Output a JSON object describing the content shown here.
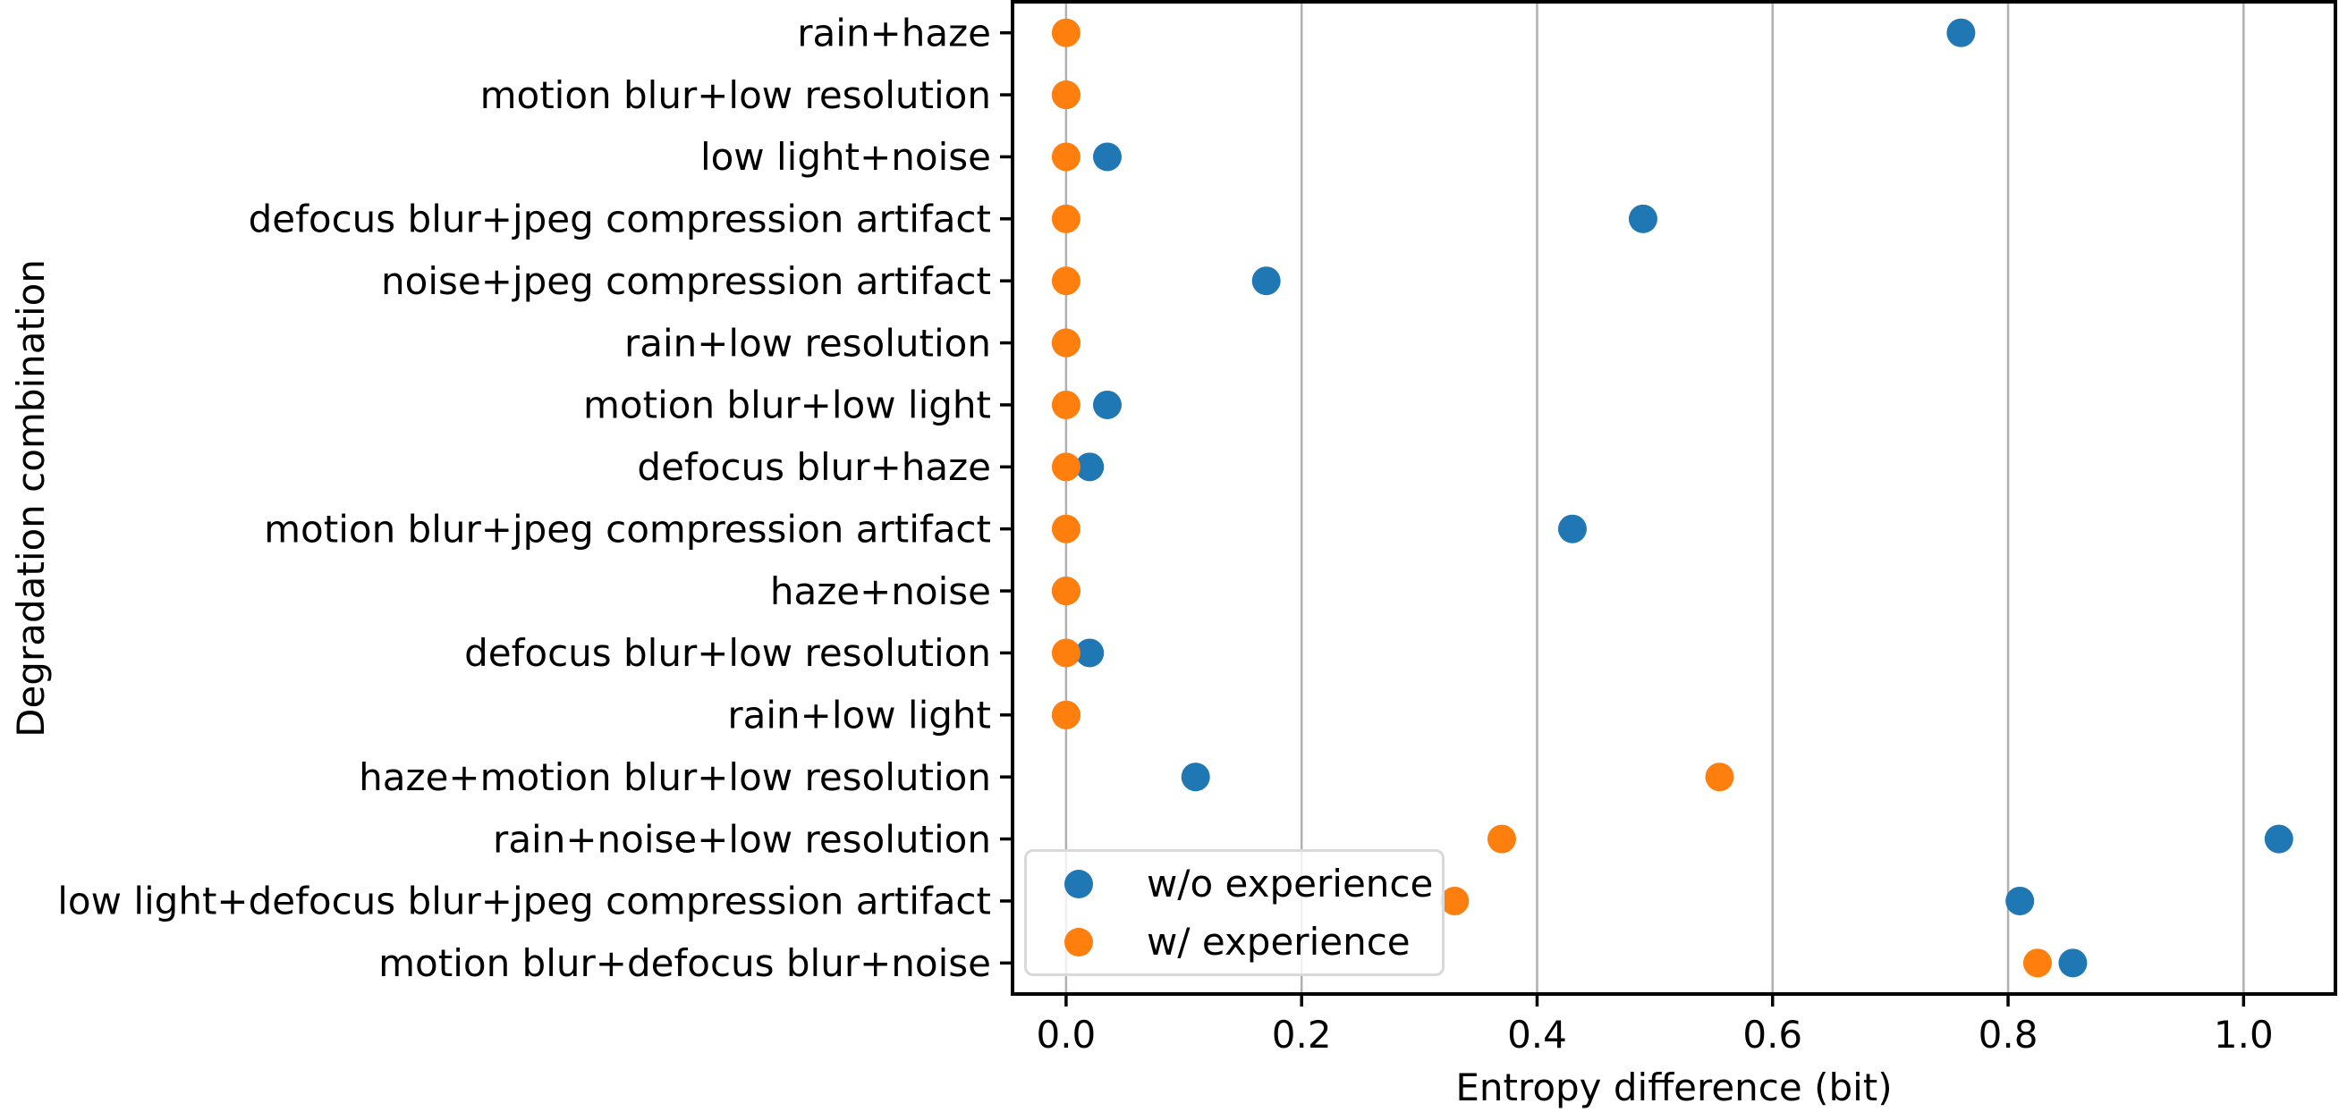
{
  "chart_data": {
    "type": "scatter",
    "orientation": "horizontal-categorical",
    "xlabel": "Entropy difference (bit)",
    "ylabel": "Degradation combination",
    "categories": [
      "rain+haze",
      "motion blur+low resolution",
      "low light+noise",
      "defocus blur+jpeg compression artifact",
      "noise+jpeg compression artifact",
      "rain+low resolution",
      "motion blur+low light",
      "defocus blur+haze",
      "motion blur+jpeg compression artifact",
      "haze+noise",
      "defocus blur+low resolution",
      "rain+low light",
      "haze+motion blur+low resolution",
      "rain+noise+low resolution",
      "low light+defocus blur+jpeg compression artifact",
      "motion blur+defocus blur+noise"
    ],
    "series": [
      {
        "name": "w/o experience",
        "color": "#1f77b4",
        "values": [
          0.76,
          0.0,
          0.035,
          0.49,
          0.17,
          0.0,
          0.035,
          0.02,
          0.43,
          0.0,
          0.02,
          0.0,
          0.11,
          1.03,
          0.81,
          0.855
        ]
      },
      {
        "name": "w/ experience",
        "color": "#ff7f0e",
        "values": [
          0.0,
          0.0,
          0.0,
          0.0,
          0.0,
          0.0,
          0.0,
          0.0,
          0.0,
          0.0,
          0.0,
          0.0,
          0.555,
          0.37,
          0.33,
          0.825
        ]
      }
    ],
    "xticks": {
      "values": [
        0.0,
        0.2,
        0.4,
        0.6,
        0.8,
        1.0
      ],
      "labels": [
        "0.0",
        "0.2",
        "0.4",
        "0.6",
        "0.8",
        "1.0"
      ]
    },
    "xlim": [
      -0.0455,
      1.078
    ],
    "grid": {
      "axis": "x",
      "color": "#b0b0b0"
    },
    "legend": {
      "position": "lower left",
      "entries": [
        "w/o experience",
        "w/ experience"
      ]
    },
    "marker": {
      "shape": "circle",
      "radius_px": 16
    },
    "colors": {
      "background": "#ffffff",
      "axis": "#000000",
      "text": "#000000",
      "legend_border": "#d9d9d9"
    }
  }
}
